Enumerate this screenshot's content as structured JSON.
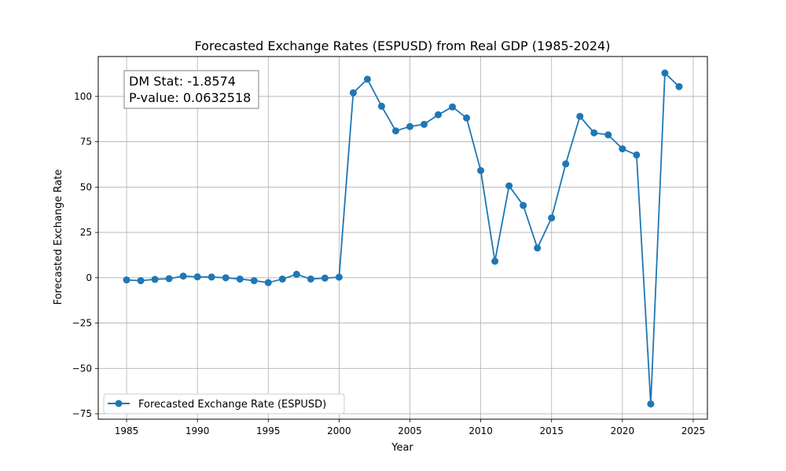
{
  "chart_data": {
    "type": "line",
    "title": "Forecasted Exchange Rates (ESPUSD) from Real GDP (1985-2024)",
    "xlabel": "Year",
    "ylabel": "Forecasted Exchange Rate",
    "xlim": [
      1983,
      2026
    ],
    "ylim": [
      -78,
      122
    ],
    "xticks": [
      1985,
      1990,
      1995,
      2000,
      2005,
      2010,
      2015,
      2020,
      2025
    ],
    "yticks": [
      -75,
      -50,
      -25,
      0,
      25,
      50,
      75,
      100
    ],
    "ytick_labels": [
      "−75",
      "−50",
      "−25",
      "0",
      "25",
      "50",
      "75",
      "100"
    ],
    "grid": true,
    "legend_position": "lower-left",
    "annotation": {
      "line1": "DM Stat: -1.8574",
      "line2": "P-value: 0.0632518"
    },
    "series": [
      {
        "name": "Forecasted Exchange Rate (ESPUSD)",
        "color": "#1f77b4",
        "marker": "circle",
        "x": [
          1985,
          1986,
          1987,
          1988,
          1989,
          1990,
          1991,
          1992,
          1993,
          1994,
          1995,
          1996,
          1997,
          1998,
          1999,
          2000,
          2001,
          2002,
          2003,
          2004,
          2005,
          2006,
          2007,
          2008,
          2009,
          2010,
          2011,
          2012,
          2013,
          2014,
          2015,
          2016,
          2017,
          2018,
          2019,
          2020,
          2021,
          2022,
          2023,
          2024
        ],
        "y": [
          -1.2,
          -1.6,
          -0.9,
          -0.5,
          0.9,
          0.5,
          0.4,
          0.0,
          -0.7,
          -1.6,
          -2.7,
          -0.7,
          1.9,
          -0.7,
          -0.2,
          0.3,
          102.0,
          109.5,
          94.6,
          81.0,
          83.4,
          84.6,
          89.9,
          94.2,
          88.1,
          59.1,
          9.1,
          50.7,
          39.9,
          16.4,
          33.0,
          62.8,
          89.0,
          79.9,
          78.8,
          71.1,
          67.7,
          -69.6,
          112.9,
          105.4
        ]
      }
    ]
  }
}
